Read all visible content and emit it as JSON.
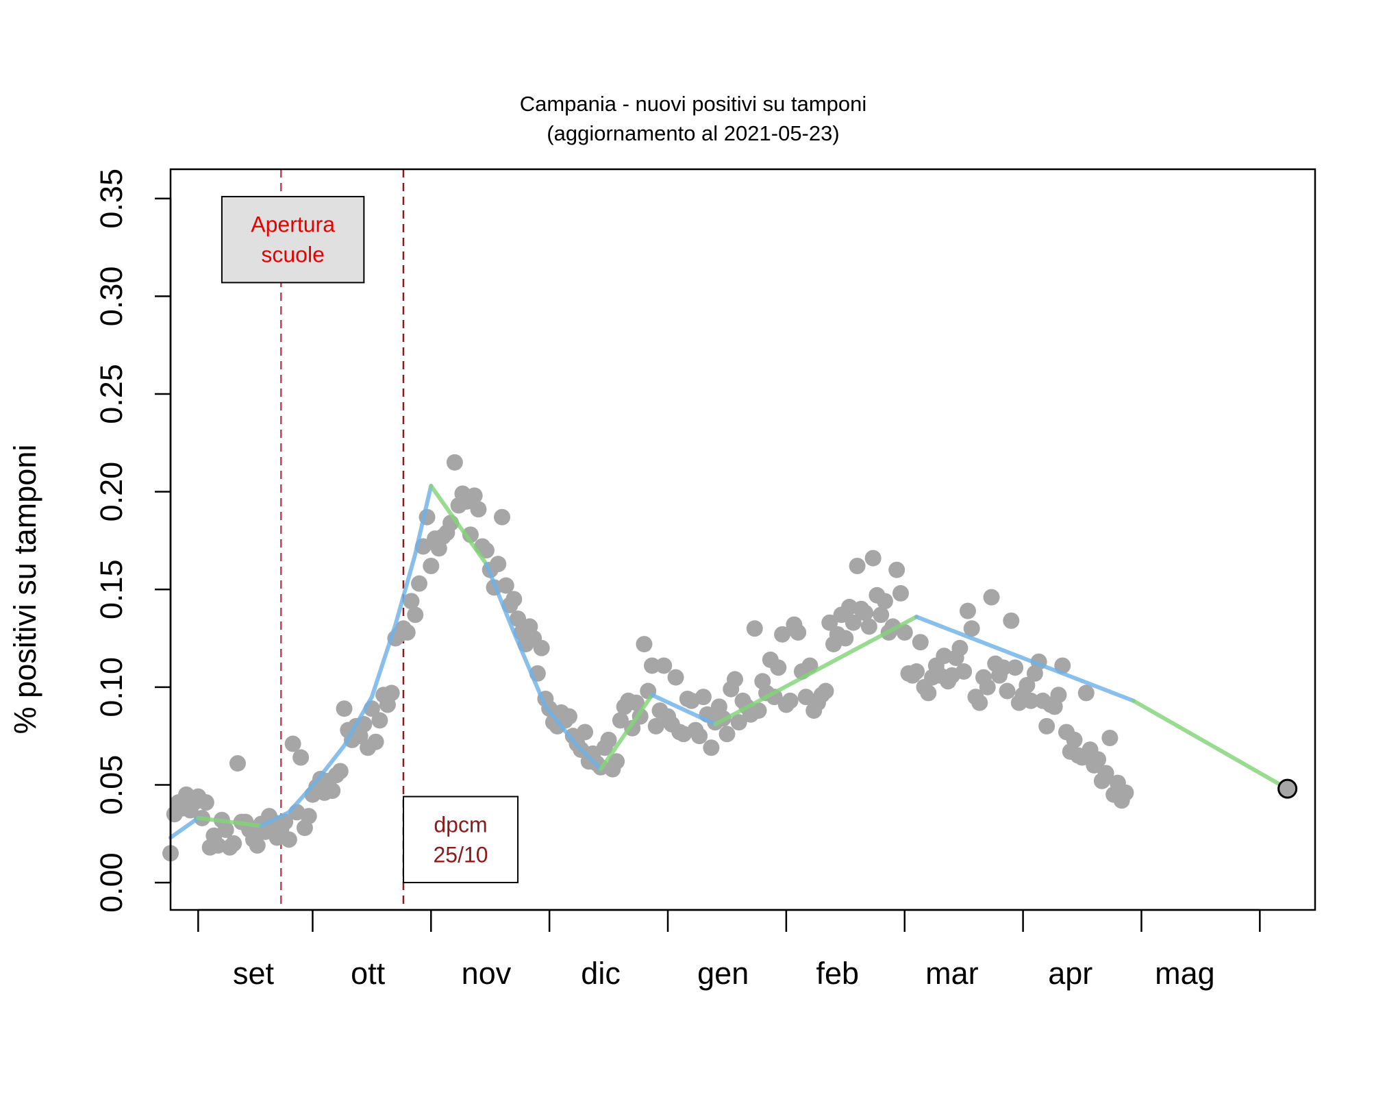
{
  "chart_data": {
    "type": "scatter",
    "title": "Campania - nuovi positivi su tamponi",
    "subtitle": "(aggiornamento al 2021-05-23)",
    "ylabel": "%  positivi su tamponi",
    "xlabel": "",
    "ylim": [
      -0.014,
      0.365
    ],
    "xlim": [
      "2020-08-13",
      "2021-05-30"
    ],
    "y_ticks": [
      "0.00",
      "0.05",
      "0.10",
      "0.15",
      "0.20",
      "0.25",
      "0.30",
      "0.35"
    ],
    "x_tick_dates": [
      "2020-08-20",
      "2020-09-18",
      "2020-10-18",
      "2020-11-17",
      "2020-12-17",
      "2021-01-16",
      "2021-02-15",
      "2021-03-17",
      "2021-04-16",
      "2021-05-16"
    ],
    "month_labels": [
      {
        "label": "set",
        "date": "2020-09-03"
      },
      {
        "label": "ott",
        "date": "2020-10-02"
      },
      {
        "label": "nov",
        "date": "2020-11-01"
      },
      {
        "label": "dic",
        "date": "2020-11-30"
      },
      {
        "label": "gen",
        "date": "2020-12-31"
      },
      {
        "label": "feb",
        "date": "2021-01-29"
      },
      {
        "label": "mar",
        "date": "2021-02-27"
      },
      {
        "label": "apr",
        "date": "2021-03-29"
      },
      {
        "label": "mag",
        "date": "2021-04-27"
      }
    ],
    "vlines": [
      {
        "date": "2020-09-10",
        "color": "#cd3a4f",
        "style": "dashed"
      },
      {
        "date": "2020-10-11",
        "color": "#8b1a1a",
        "style": "dashed"
      }
    ],
    "annotations": [
      {
        "text": [
          "Apertura",
          "scuole"
        ],
        "color": "#e60000",
        "fill": "#e0e0e0",
        "date_from": "2020-08-26",
        "date_to": "2020-10-01",
        "y_from": 0.307,
        "y_to": 0.351
      },
      {
        "text": [
          "dpcm",
          "25/10"
        ],
        "color": "#8b1a1a",
        "fill": "#ffffff",
        "date_from": "2020-10-11",
        "date_to": "2020-11-09",
        "y_from": 0.0,
        "y_to": 0.044
      }
    ],
    "point_color": "#a6a6a6",
    "last_point": {
      "x": "2021-05-23",
      "y": 0.048
    },
    "trend_segments": [
      {
        "color": "#6fb1e6",
        "points": [
          [
            "2020-08-13",
            0.023
          ],
          [
            "2020-08-20",
            0.033
          ]
        ]
      },
      {
        "color": "#84d37a",
        "points": [
          [
            "2020-08-20",
            0.033
          ],
          [
            "2020-09-05",
            0.029
          ]
        ]
      },
      {
        "color": "#6fb1e6",
        "points": [
          [
            "2020-09-05",
            0.029
          ],
          [
            "2020-09-12",
            0.036
          ],
          [
            "2020-09-19",
            0.052
          ],
          [
            "2020-09-26",
            0.07
          ],
          [
            "2020-10-03",
            0.095
          ],
          [
            "2020-10-09",
            0.132
          ],
          [
            "2020-10-14",
            0.168
          ],
          [
            "2020-10-18",
            0.203
          ]
        ]
      },
      {
        "color": "#84d37a",
        "points": [
          [
            "2020-10-18",
            0.203
          ],
          [
            "2020-11-01",
            0.163
          ]
        ]
      },
      {
        "color": "#6fb1e6",
        "points": [
          [
            "2020-11-01",
            0.163
          ],
          [
            "2020-11-08",
            0.128
          ],
          [
            "2020-11-16",
            0.09
          ],
          [
            "2020-11-24",
            0.07
          ],
          [
            "2020-11-30",
            0.058
          ]
        ]
      },
      {
        "color": "#84d37a",
        "points": [
          [
            "2020-11-30",
            0.058
          ],
          [
            "2020-12-13",
            0.096
          ]
        ]
      },
      {
        "color": "#6fb1e6",
        "points": [
          [
            "2020-12-13",
            0.096
          ],
          [
            "2020-12-29",
            0.081
          ]
        ]
      },
      {
        "color": "#84d37a",
        "points": [
          [
            "2020-12-29",
            0.081
          ],
          [
            "2021-02-18",
            0.136
          ]
        ]
      },
      {
        "color": "#6fb1e6",
        "points": [
          [
            "2021-02-18",
            0.136
          ],
          [
            "2021-04-14",
            0.093
          ]
        ]
      },
      {
        "color": "#84d37a",
        "points": [
          [
            "2021-04-14",
            0.093
          ],
          [
            "2021-05-23",
            0.048
          ]
        ]
      }
    ],
    "points": [
      [
        "2020-08-13",
        0.015
      ],
      [
        "2020-08-14",
        0.035
      ],
      [
        "2020-08-15",
        0.041
      ],
      [
        "2020-08-16",
        0.038
      ],
      [
        "2020-08-17",
        0.045
      ],
      [
        "2020-08-18",
        0.037
      ],
      [
        "2020-08-19",
        0.041
      ],
      [
        "2020-08-20",
        0.044
      ],
      [
        "2020-08-21",
        0.033
      ],
      [
        "2020-08-22",
        0.041
      ],
      [
        "2020-08-23",
        0.018
      ],
      [
        "2020-08-24",
        0.024
      ],
      [
        "2020-08-25",
        0.019
      ],
      [
        "2020-08-26",
        0.032
      ],
      [
        "2020-08-27",
        0.027
      ],
      [
        "2020-08-28",
        0.018
      ],
      [
        "2020-08-29",
        0.02
      ],
      [
        "2020-08-30",
        0.061
      ],
      [
        "2020-08-31",
        0.031
      ],
      [
        "2020-09-01",
        0.031
      ],
      [
        "2020-09-02",
        0.027
      ],
      [
        "2020-09-03",
        0.022
      ],
      [
        "2020-09-04",
        0.019
      ],
      [
        "2020-09-05",
        0.03
      ],
      [
        "2020-09-06",
        0.026
      ],
      [
        "2020-09-07",
        0.034
      ],
      [
        "2020-09-08",
        0.031
      ],
      [
        "2020-09-09",
        0.023
      ],
      [
        "2020-09-10",
        0.027
      ],
      [
        "2020-09-11",
        0.031
      ],
      [
        "2020-09-12",
        0.022
      ],
      [
        "2020-09-13",
        0.071
      ],
      [
        "2020-09-14",
        0.036
      ],
      [
        "2020-09-15",
        0.064
      ],
      [
        "2020-09-16",
        0.028
      ],
      [
        "2020-09-17",
        0.034
      ],
      [
        "2020-09-18",
        0.045
      ],
      [
        "2020-09-19",
        0.049
      ],
      [
        "2020-09-20",
        0.053
      ],
      [
        "2020-09-21",
        0.046
      ],
      [
        "2020-09-22",
        0.052
      ],
      [
        "2020-09-23",
        0.047
      ],
      [
        "2020-09-24",
        0.055
      ],
      [
        "2020-09-25",
        0.057
      ],
      [
        "2020-09-26",
        0.089
      ],
      [
        "2020-09-27",
        0.078
      ],
      [
        "2020-09-28",
        0.073
      ],
      [
        "2020-09-29",
        0.08
      ],
      [
        "2020-09-30",
        0.075
      ],
      [
        "2020-10-01",
        0.081
      ],
      [
        "2020-10-02",
        0.069
      ],
      [
        "2020-10-03",
        0.089
      ],
      [
        "2020-10-04",
        0.072
      ],
      [
        "2020-10-05",
        0.083
      ],
      [
        "2020-10-06",
        0.096
      ],
      [
        "2020-10-07",
        0.091
      ],
      [
        "2020-10-08",
        0.097
      ],
      [
        "2020-10-09",
        0.125
      ],
      [
        "2020-10-10",
        0.127
      ],
      [
        "2020-10-11",
        0.13
      ],
      [
        "2020-10-12",
        0.128
      ],
      [
        "2020-10-13",
        0.144
      ],
      [
        "2020-10-14",
        0.137
      ],
      [
        "2020-10-15",
        0.153
      ],
      [
        "2020-10-16",
        0.172
      ],
      [
        "2020-10-17",
        0.187
      ],
      [
        "2020-10-18",
        0.162
      ],
      [
        "2020-10-19",
        0.176
      ],
      [
        "2020-10-20",
        0.171
      ],
      [
        "2020-10-21",
        0.177
      ],
      [
        "2020-10-22",
        0.179
      ],
      [
        "2020-10-23",
        0.184
      ],
      [
        "2020-10-24",
        0.215
      ],
      [
        "2020-10-25",
        0.193
      ],
      [
        "2020-10-26",
        0.199
      ],
      [
        "2020-10-27",
        0.195
      ],
      [
        "2020-10-28",
        0.178
      ],
      [
        "2020-10-29",
        0.198
      ],
      [
        "2020-10-30",
        0.191
      ],
      [
        "2020-10-31",
        0.172
      ],
      [
        "2020-11-01",
        0.17
      ],
      [
        "2020-11-02",
        0.16
      ],
      [
        "2020-11-03",
        0.151
      ],
      [
        "2020-11-04",
        0.163
      ],
      [
        "2020-11-05",
        0.187
      ],
      [
        "2020-11-06",
        0.152
      ],
      [
        "2020-11-07",
        0.142
      ],
      [
        "2020-11-08",
        0.145
      ],
      [
        "2020-11-09",
        0.135
      ],
      [
        "2020-11-10",
        0.128
      ],
      [
        "2020-11-11",
        0.122
      ],
      [
        "2020-11-12",
        0.131
      ],
      [
        "2020-11-13",
        0.125
      ],
      [
        "2020-11-14",
        0.107
      ],
      [
        "2020-11-15",
        0.12
      ],
      [
        "2020-11-16",
        0.094
      ],
      [
        "2020-11-17",
        0.089
      ],
      [
        "2020-11-18",
        0.082
      ],
      [
        "2020-11-19",
        0.08
      ],
      [
        "2020-11-20",
        0.087
      ],
      [
        "2020-11-21",
        0.083
      ],
      [
        "2020-11-22",
        0.085
      ],
      [
        "2020-11-23",
        0.075
      ],
      [
        "2020-11-24",
        0.071
      ],
      [
        "2020-11-25",
        0.068
      ],
      [
        "2020-11-26",
        0.077
      ],
      [
        "2020-11-27",
        0.062
      ],
      [
        "2020-11-28",
        0.066
      ],
      [
        "2020-11-29",
        0.061
      ],
      [
        "2020-11-30",
        0.059
      ],
      [
        "2020-12-01",
        0.069
      ],
      [
        "2020-12-02",
        0.073
      ],
      [
        "2020-12-03",
        0.058
      ],
      [
        "2020-12-04",
        0.062
      ],
      [
        "2020-12-05",
        0.083
      ],
      [
        "2020-12-06",
        0.09
      ],
      [
        "2020-12-07",
        0.093
      ],
      [
        "2020-12-08",
        0.079
      ],
      [
        "2020-12-09",
        0.092
      ],
      [
        "2020-12-10",
        0.085
      ],
      [
        "2020-12-11",
        0.122
      ],
      [
        "2020-12-12",
        0.098
      ],
      [
        "2020-12-13",
        0.111
      ],
      [
        "2020-12-14",
        0.08
      ],
      [
        "2020-12-15",
        0.088
      ],
      [
        "2020-12-16",
        0.111
      ],
      [
        "2020-12-17",
        0.085
      ],
      [
        "2020-12-18",
        0.081
      ],
      [
        "2020-12-19",
        0.105
      ],
      [
        "2020-12-20",
        0.077
      ],
      [
        "2020-12-21",
        0.076
      ],
      [
        "2020-12-22",
        0.094
      ],
      [
        "2020-12-23",
        0.093
      ],
      [
        "2020-12-24",
        0.078
      ],
      [
        "2020-12-25",
        0.075
      ],
      [
        "2020-12-26",
        0.095
      ],
      [
        "2020-12-27",
        0.086
      ],
      [
        "2020-12-28",
        0.069
      ],
      [
        "2020-12-29",
        0.082
      ],
      [
        "2020-12-30",
        0.09
      ],
      [
        "2020-12-31",
        0.084
      ],
      [
        "2021-01-01",
        0.076
      ],
      [
        "2021-01-02",
        0.099
      ],
      [
        "2021-01-03",
        0.104
      ],
      [
        "2021-01-04",
        0.082
      ],
      [
        "2021-01-05",
        0.093
      ],
      [
        "2021-01-06",
        0.09
      ],
      [
        "2021-01-07",
        0.086
      ],
      [
        "2021-01-08",
        0.13
      ],
      [
        "2021-01-09",
        0.088
      ],
      [
        "2021-01-10",
        0.103
      ],
      [
        "2021-01-11",
        0.097
      ],
      [
        "2021-01-12",
        0.114
      ],
      [
        "2021-01-13",
        0.095
      ],
      [
        "2021-01-14",
        0.11
      ],
      [
        "2021-01-15",
        0.127
      ],
      [
        "2021-01-16",
        0.091
      ],
      [
        "2021-01-17",
        0.093
      ],
      [
        "2021-01-18",
        0.132
      ],
      [
        "2021-01-19",
        0.128
      ],
      [
        "2021-01-20",
        0.108
      ],
      [
        "2021-01-21",
        0.095
      ],
      [
        "2021-01-22",
        0.111
      ],
      [
        "2021-01-23",
        0.088
      ],
      [
        "2021-01-24",
        0.092
      ],
      [
        "2021-01-25",
        0.096
      ],
      [
        "2021-01-26",
        0.098
      ],
      [
        "2021-01-27",
        0.133
      ],
      [
        "2021-01-28",
        0.122
      ],
      [
        "2021-01-29",
        0.127
      ],
      [
        "2021-01-30",
        0.137
      ],
      [
        "2021-01-31",
        0.125
      ],
      [
        "2021-02-01",
        0.141
      ],
      [
        "2021-02-02",
        0.133
      ],
      [
        "2021-02-03",
        0.162
      ],
      [
        "2021-02-04",
        0.14
      ],
      [
        "2021-02-05",
        0.138
      ],
      [
        "2021-02-06",
        0.131
      ],
      [
        "2021-02-07",
        0.166
      ],
      [
        "2021-02-08",
        0.147
      ],
      [
        "2021-02-09",
        0.137
      ],
      [
        "2021-02-10",
        0.144
      ],
      [
        "2021-02-11",
        0.128
      ],
      [
        "2021-02-12",
        0.131
      ],
      [
        "2021-02-13",
        0.16
      ],
      [
        "2021-02-14",
        0.148
      ],
      [
        "2021-02-15",
        0.128
      ],
      [
        "2021-02-16",
        0.107
      ],
      [
        "2021-02-17",
        0.106
      ],
      [
        "2021-02-18",
        0.108
      ],
      [
        "2021-02-19",
        0.123
      ],
      [
        "2021-02-20",
        0.1
      ],
      [
        "2021-02-21",
        0.097
      ],
      [
        "2021-02-22",
        0.105
      ],
      [
        "2021-02-23",
        0.111
      ],
      [
        "2021-02-24",
        0.106
      ],
      [
        "2021-02-25",
        0.116
      ],
      [
        "2021-02-26",
        0.103
      ],
      [
        "2021-02-27",
        0.106
      ],
      [
        "2021-02-28",
        0.115
      ],
      [
        "2021-03-01",
        0.12
      ],
      [
        "2021-03-02",
        0.108
      ],
      [
        "2021-03-03",
        0.139
      ],
      [
        "2021-03-04",
        0.13
      ],
      [
        "2021-03-05",
        0.095
      ],
      [
        "2021-03-06",
        0.092
      ],
      [
        "2021-03-07",
        0.105
      ],
      [
        "2021-03-08",
        0.1
      ],
      [
        "2021-03-09",
        0.146
      ],
      [
        "2021-03-10",
        0.112
      ],
      [
        "2021-03-11",
        0.106
      ],
      [
        "2021-03-12",
        0.11
      ],
      [
        "2021-03-13",
        0.098
      ],
      [
        "2021-03-14",
        0.134
      ],
      [
        "2021-03-15",
        0.11
      ],
      [
        "2021-03-16",
        0.092
      ],
      [
        "2021-03-17",
        0.096
      ],
      [
        "2021-03-18",
        0.101
      ],
      [
        "2021-03-19",
        0.093
      ],
      [
        "2021-03-20",
        0.107
      ],
      [
        "2021-03-21",
        0.113
      ],
      [
        "2021-03-22",
        0.093
      ],
      [
        "2021-03-23",
        0.08
      ],
      [
        "2021-03-24",
        0.091
      ],
      [
        "2021-03-25",
        0.09
      ],
      [
        "2021-03-26",
        0.096
      ],
      [
        "2021-03-27",
        0.111
      ],
      [
        "2021-03-28",
        0.077
      ],
      [
        "2021-03-29",
        0.067
      ],
      [
        "2021-03-30",
        0.073
      ],
      [
        "2021-03-31",
        0.065
      ],
      [
        "2021-04-01",
        0.064
      ],
      [
        "2021-04-02",
        0.097
      ],
      [
        "2021-04-03",
        0.068
      ],
      [
        "2021-04-04",
        0.06
      ],
      [
        "2021-04-05",
        0.063
      ],
      [
        "2021-04-06",
        0.052
      ],
      [
        "2021-04-07",
        0.056
      ],
      [
        "2021-04-08",
        0.074
      ],
      [
        "2021-04-09",
        0.045
      ],
      [
        "2021-04-10",
        0.051
      ],
      [
        "2021-04-11",
        0.042
      ],
      [
        "2021-04-12",
        0.046
      ]
    ]
  }
}
